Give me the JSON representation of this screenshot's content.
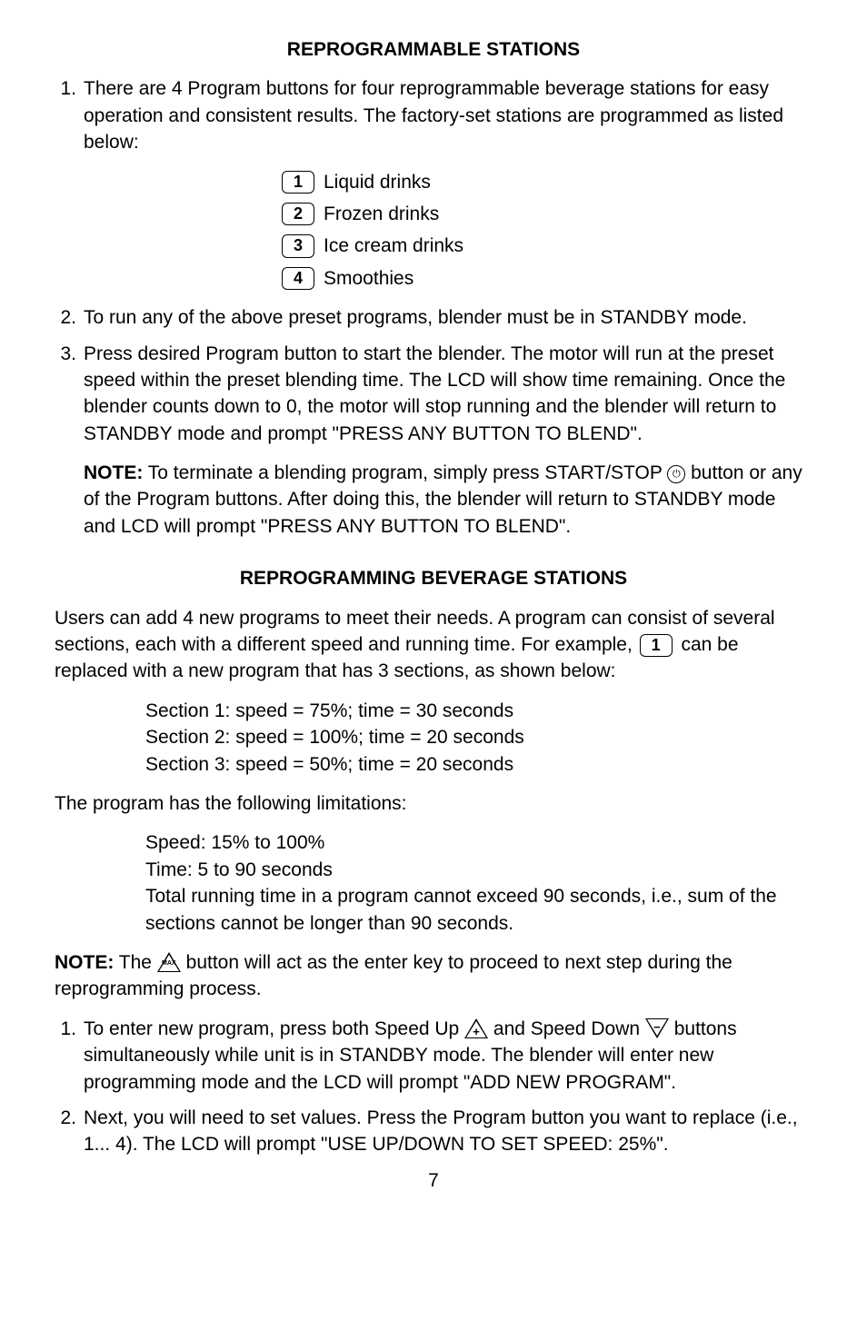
{
  "heading1": "REPROGRAMMABLE STATIONS",
  "items1": {
    "n1": "1.",
    "t1": "There are 4 Program buttons for four reprogrammable beverage stations for easy operation and consistent results. The factory-set stations are programmed as listed below:"
  },
  "stations": {
    "b1": "1",
    "l1": "Liquid drinks",
    "b2": "2",
    "l2": "Frozen drinks",
    "b3": "3",
    "l3": "Ice cream drinks",
    "b4": "4",
    "l4": "Smoothies"
  },
  "items2": {
    "n2": "2.",
    "t2": "To run any of the above preset programs, blender must be in STANDBY mode.",
    "n3": "3.",
    "t3": "Press desired Program button to start the blender. The motor will run at the preset speed within the preset blending time. The LCD will show time remaining. Once the blender counts down to 0, the motor will stop running and the blender will return to STANDBY mode and prompt \"PRESS ANY BUTTON TO BLEND\"."
  },
  "note1": {
    "label": "NOTE:",
    "text_a": " To terminate a blending program, simply press START/STOP ",
    "text_b": " button or any of the Program buttons. After doing this, the blender will return to STANDBY mode and LCD will prompt \"PRESS ANY BUTTON TO BLEND\"."
  },
  "heading2": "REPROGRAMMING BEVERAGE STATIONS",
  "para2_a": "Users can add 4 new programs to meet their needs. A program can consist of several sections, each with a different speed and running time. For example, ",
  "para2_box": "1",
  "para2_b": " can be replaced with a new program that has 3 sections, as shown below:",
  "sections": {
    "s1": "Section 1: speed = 75%; time = 30 seconds",
    "s2": "Section 2: speed = 100%; time = 20 seconds",
    "s3": "Section 3: speed = 50%; time = 20 seconds"
  },
  "para3": "The program has the following limitations:",
  "limits": {
    "l1": "Speed: 15% to 100%",
    "l2": "Time: 5 to 90 seconds",
    "l3": "Total running time in a program cannot exceed 90 seconds, i.e., sum of the sections cannot be longer than 90 seconds."
  },
  "note2": {
    "label": "NOTE:",
    "text_a": " The ",
    "max_label": "MAX",
    "text_b": " button will act as the enter key to proceed to next step during the reprogramming process."
  },
  "items3": {
    "n1": "1.",
    "t1_a": "To enter new program, press both Speed Up ",
    "plus": "+",
    "t1_b": " and Speed Down ",
    "minus": "−",
    "t1_c": " buttons simultaneously while unit is in STANDBY mode. The blender will enter new programming mode and the LCD will prompt \"ADD NEW PROGRAM\".",
    "n2": "2.",
    "t2": "Next, you will need to set values. Press the Program button you want to replace (i.e., 1... 4). The LCD will prompt \"USE UP/DOWN TO SET SPEED: 25%\"."
  },
  "page_num": "7",
  "power_icon": "⏻"
}
